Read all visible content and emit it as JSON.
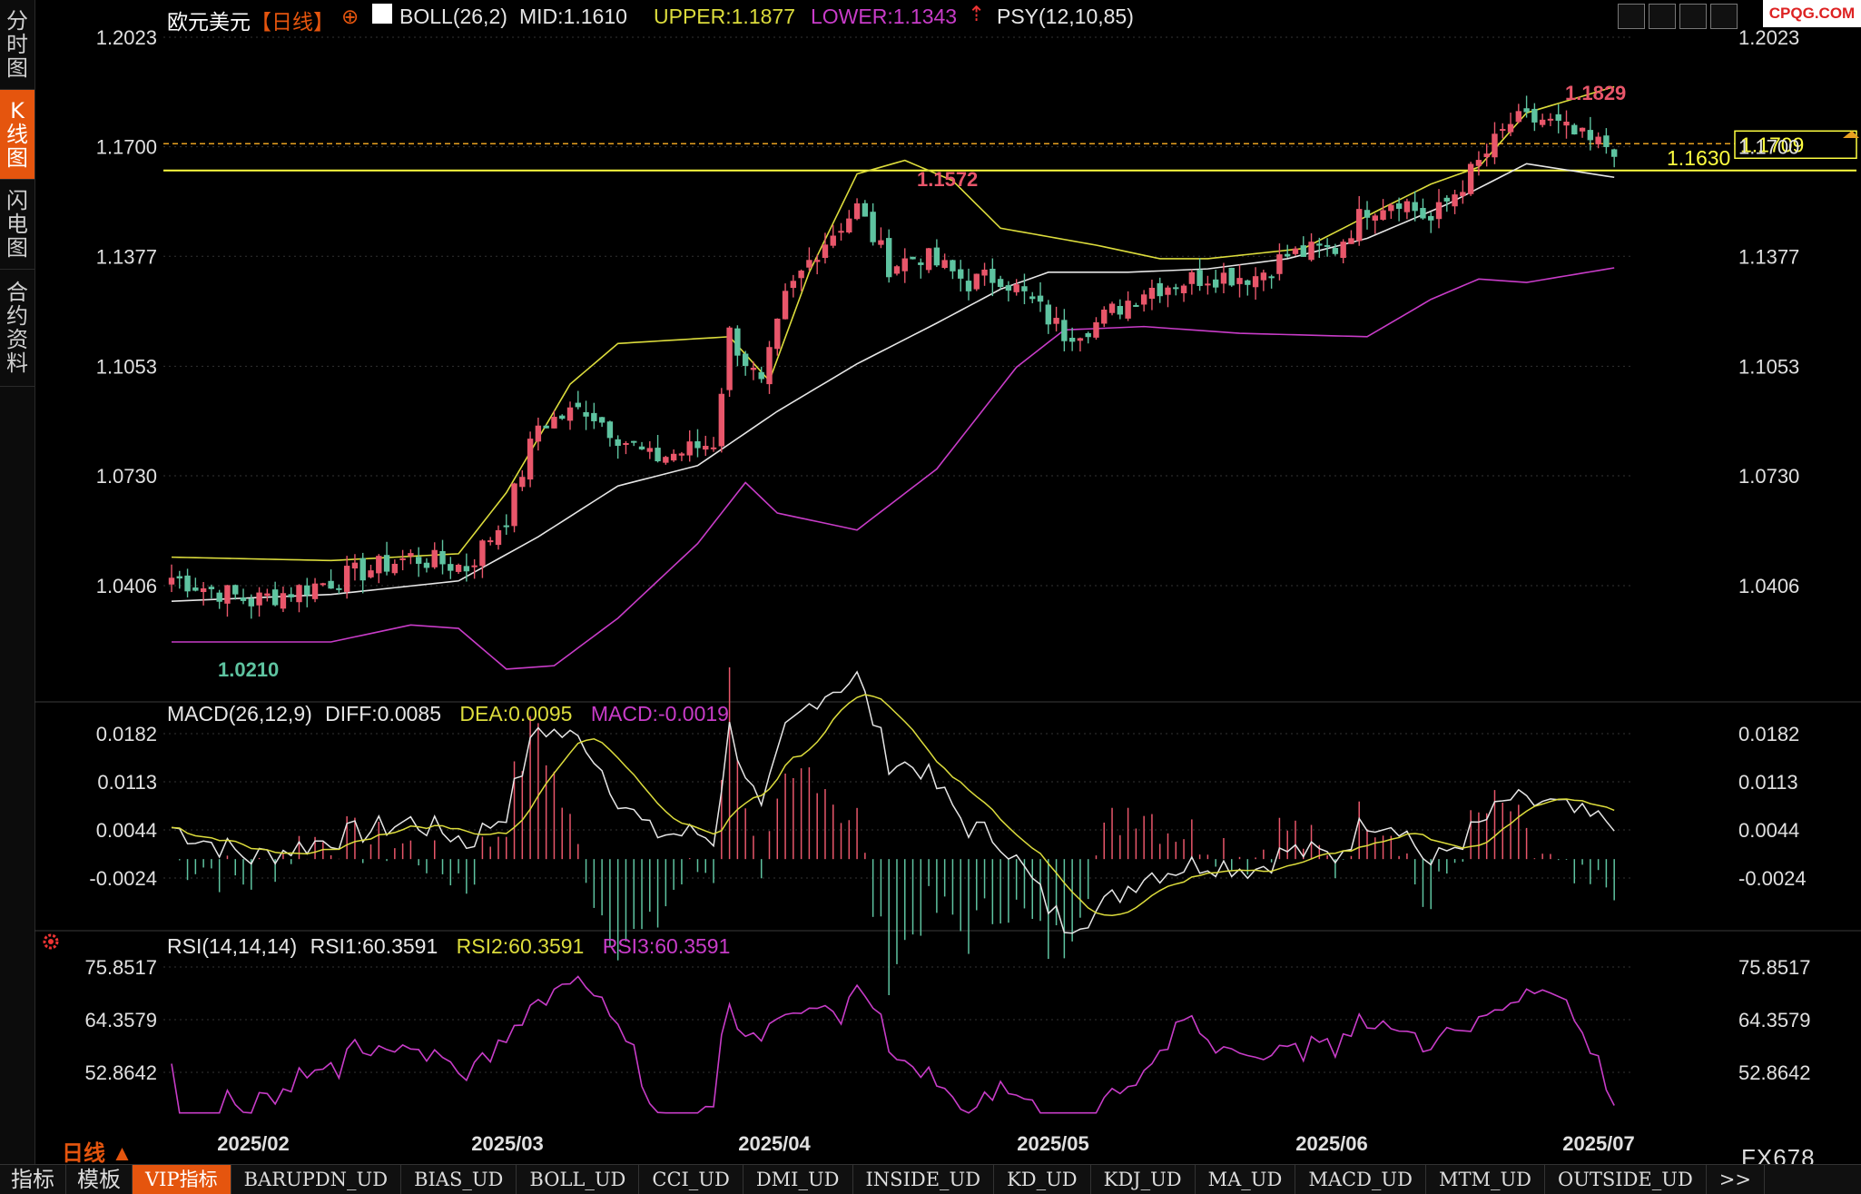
{
  "sidebar": {
    "tabs": [
      {
        "label": "分时图",
        "active": false
      },
      {
        "label": "K线图",
        "active": true
      },
      {
        "label": "闪电图",
        "active": false
      },
      {
        "label": "合约资料",
        "active": false
      }
    ]
  },
  "header": {
    "instrument": "欧元美元",
    "period": "【日线】",
    "boll_label": "BOLL(26,2)",
    "mid": "MID:1.1610",
    "upper": "UPPER:1.1877",
    "lower": "LOWER:1.1343",
    "psy": "PSY(12,10,85)"
  },
  "logo": "CPQG.COM",
  "price_panel": {
    "y_ticks": [
      "1.2023",
      "1.1700",
      "1.1377",
      "1.1053",
      "1.0730",
      "1.0406"
    ],
    "y_tick_values": [
      1.2023,
      1.17,
      1.1377,
      1.1053,
      1.073,
      1.0406
    ],
    "low_label": "1.0210",
    "high_label_1": "1.1572",
    "high_label_2": "1.1829",
    "support_label": "1.1630",
    "current_price": "1.1709",
    "support_value": 1.163,
    "current_value": 1.1709
  },
  "macd_panel": {
    "title": "MACD(26,12,9)",
    "diff": "DIFF:0.0085",
    "dea": "DEA:0.0095",
    "macd": "MACD:-0.0019",
    "y_ticks": [
      "0.0182",
      "0.0113",
      "0.0044",
      "-0.0024"
    ]
  },
  "rsi_panel": {
    "title": "RSI(14,14,14)",
    "rsi1": "RSI1:60.3591",
    "rsi2": "RSI2:60.3591",
    "rsi3": "RSI3:60.3591",
    "y_ticks": [
      "75.8517",
      "64.3579",
      "52.8642"
    ]
  },
  "x_axis": {
    "labels": [
      "2025/02",
      "2025/03",
      "2025/04",
      "2025/05",
      "2025/06",
      "2025/07"
    ],
    "period_label": "日线 ▲"
  },
  "bottom_tabs": [
    {
      "label": "指标",
      "active": false,
      "cn": true
    },
    {
      "label": "模板",
      "active": false,
      "cn": true
    },
    {
      "label": "VIP指标",
      "active": true,
      "cn": false
    },
    {
      "label": "BARUPDN_UD",
      "active": false,
      "cn": false
    },
    {
      "label": "BIAS_UD",
      "active": false,
      "cn": false
    },
    {
      "label": "BOLL_UD",
      "active": false,
      "cn": false
    },
    {
      "label": "CCI_UD",
      "active": false,
      "cn": false
    },
    {
      "label": "DMI_UD",
      "active": false,
      "cn": false
    },
    {
      "label": "INSIDE_UD",
      "active": false,
      "cn": false
    },
    {
      "label": "KD_UD",
      "active": false,
      "cn": false
    },
    {
      "label": "KDJ_UD",
      "active": false,
      "cn": false
    },
    {
      "label": "MA_UD",
      "active": false,
      "cn": false
    },
    {
      "label": "MACD_UD",
      "active": false,
      "cn": false
    },
    {
      "label": "MTM_UD",
      "active": false,
      "cn": false
    },
    {
      "label": "OUTSIDE_UD",
      "active": false,
      "cn": false
    },
    {
      "label": ">>",
      "active": false,
      "cn": false
    }
  ],
  "symbol_code": "FX678",
  "colors": {
    "background": "#000000",
    "up": "#e8566a",
    "down": "#5ec3a0",
    "upper_band": "#dcdc3c",
    "mid_band": "#e6e6e6",
    "lower_band": "#c83cc8",
    "support_line": "#ffff40",
    "accent": "#e5550e",
    "high_label": "#e8566a",
    "low_label": "#5ec3a0"
  },
  "chart_data": {
    "type": "candlestick",
    "series_anchors": {
      "close": [
        [
          0,
          1.043
        ],
        [
          10,
          1.036
        ],
        [
          20,
          1.042
        ],
        [
          30,
          1.049
        ],
        [
          37,
          1.046
        ],
        [
          42,
          1.061
        ],
        [
          46,
          1.088
        ],
        [
          52,
          1.093
        ],
        [
          56,
          1.085
        ],
        [
          60,
          1.078
        ],
        [
          64,
          1.08
        ],
        [
          68,
          1.083
        ],
        [
          70,
          1.115
        ],
        [
          74,
          1.099
        ],
        [
          77,
          1.125
        ],
        [
          81,
          1.14
        ],
        [
          86,
          1.152
        ],
        [
          90,
          1.135
        ],
        [
          94,
          1.138
        ],
        [
          100,
          1.13
        ],
        [
          104,
          1.132
        ],
        [
          108,
          1.124
        ],
        [
          112,
          1.115
        ],
        [
          116,
          1.118
        ],
        [
          122,
          1.128
        ],
        [
          130,
          1.132
        ],
        [
          136,
          1.132
        ],
        [
          140,
          1.138
        ],
        [
          146,
          1.14
        ],
        [
          150,
          1.152
        ],
        [
          154,
          1.155
        ],
        [
          158,
          1.148
        ],
        [
          164,
          1.165
        ],
        [
          168,
          1.177
        ],
        [
          172,
          1.178
        ],
        [
          178,
          1.171
        ],
        [
          181,
          1.17
        ]
      ],
      "upper": [
        [
          0,
          1.049
        ],
        [
          20,
          1.048
        ],
        [
          36,
          1.05
        ],
        [
          42,
          1.068
        ],
        [
          50,
          1.1
        ],
        [
          56,
          1.112
        ],
        [
          70,
          1.114
        ],
        [
          75,
          1.101
        ],
        [
          80,
          1.133
        ],
        [
          86,
          1.162
        ],
        [
          92,
          1.166
        ],
        [
          98,
          1.16
        ],
        [
          104,
          1.146
        ],
        [
          116,
          1.141
        ],
        [
          124,
          1.137
        ],
        [
          130,
          1.137
        ],
        [
          142,
          1.14
        ],
        [
          152,
          1.152
        ],
        [
          158,
          1.159
        ],
        [
          164,
          1.164
        ],
        [
          170,
          1.18
        ],
        [
          181,
          1.1877
        ]
      ],
      "mid": [
        [
          0,
          1.036
        ],
        [
          20,
          1.038
        ],
        [
          36,
          1.042
        ],
        [
          46,
          1.055
        ],
        [
          56,
          1.07
        ],
        [
          66,
          1.076
        ],
        [
          76,
          1.092
        ],
        [
          86,
          1.106
        ],
        [
          96,
          1.118
        ],
        [
          104,
          1.128
        ],
        [
          110,
          1.133
        ],
        [
          120,
          1.133
        ],
        [
          130,
          1.134
        ],
        [
          140,
          1.137
        ],
        [
          150,
          1.143
        ],
        [
          160,
          1.153
        ],
        [
          170,
          1.165
        ],
        [
          181,
          1.161
        ]
      ],
      "lower": [
        [
          0,
          1.024
        ],
        [
          20,
          1.024
        ],
        [
          30,
          1.029
        ],
        [
          36,
          1.028
        ],
        [
          42,
          1.016
        ],
        [
          48,
          1.017
        ],
        [
          56,
          1.031
        ],
        [
          66,
          1.053
        ],
        [
          72,
          1.071
        ],
        [
          76,
          1.062
        ],
        [
          86,
          1.057
        ],
        [
          96,
          1.075
        ],
        [
          106,
          1.105
        ],
        [
          112,
          1.116
        ],
        [
          122,
          1.117
        ],
        [
          134,
          1.115
        ],
        [
          150,
          1.114
        ],
        [
          158,
          1.125
        ],
        [
          164,
          1.131
        ],
        [
          170,
          1.13
        ],
        [
          181,
          1.1343
        ]
      ]
    },
    "macd_range": [
      -0.006,
      0.02
    ],
    "rsi_range": [
      42.0,
      80.0
    ]
  }
}
